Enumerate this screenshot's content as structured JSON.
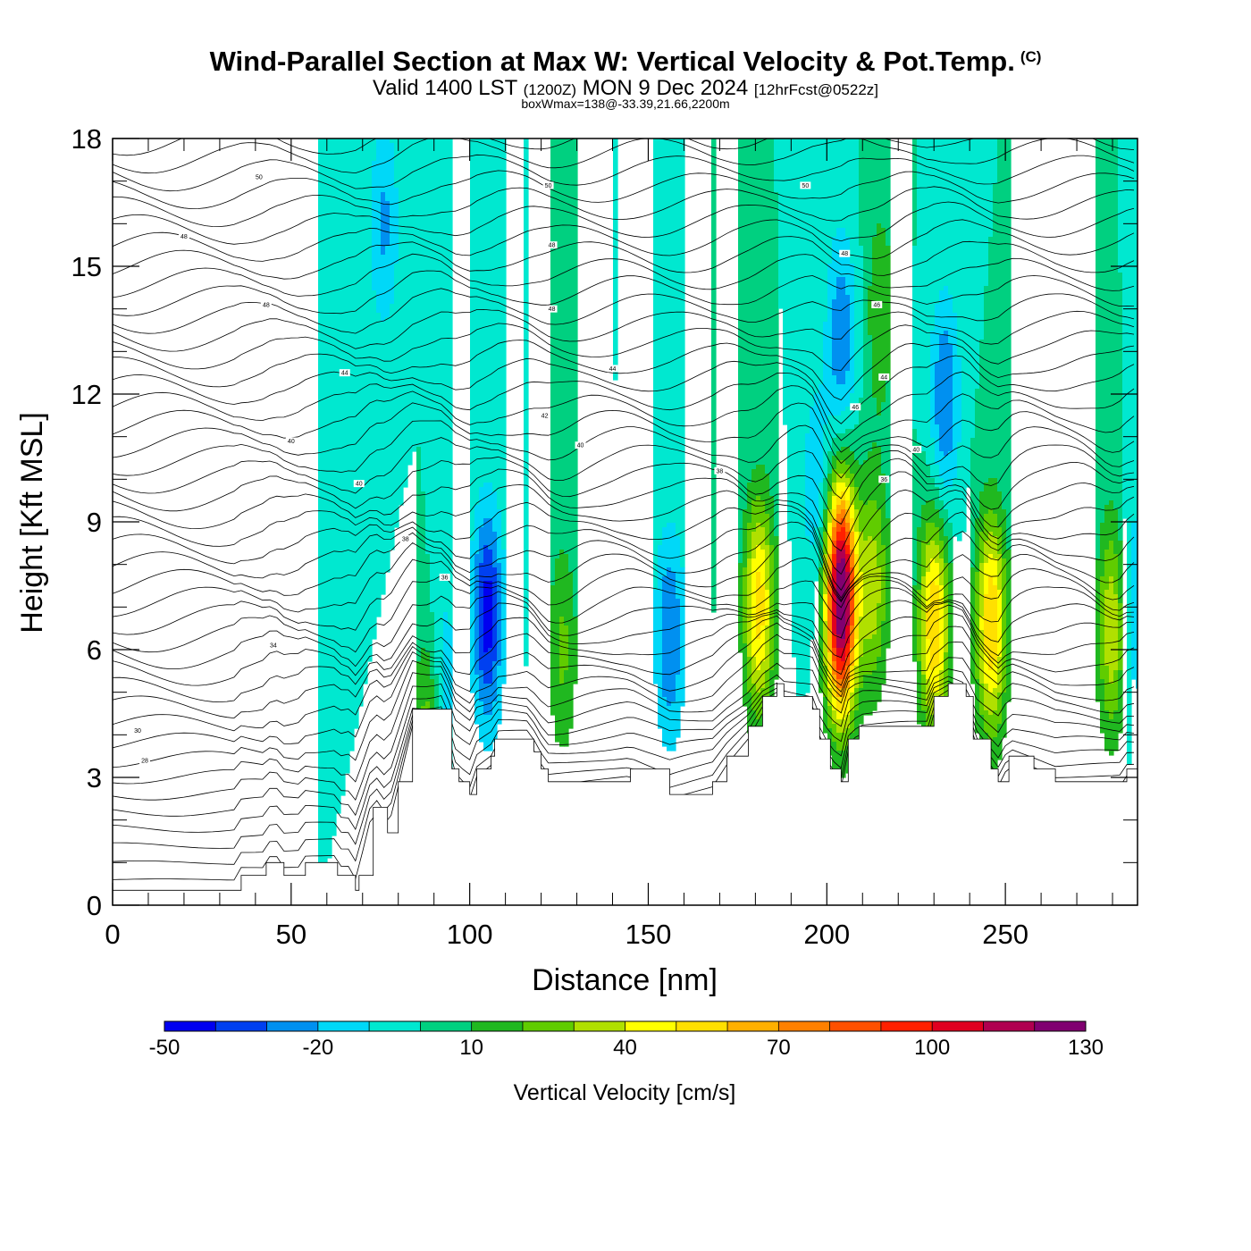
{
  "header": {
    "title": "Wind-Parallel Section at Max W: Vertical Velocity & Pot.Temp.",
    "copyright": "(C)",
    "valid_prefix": "Valid 1400 LST",
    "valid_utc": "(1200Z)",
    "valid_date": "MON 9 Dec 2024",
    "forecast": "[12hrFcst@0522z]",
    "box_wmax": "boxWmax=138@-33.39,21.66,2200m"
  },
  "chart_data": {
    "type": "heatmap",
    "xlabel": "Distance [nm]",
    "ylabel": "Height [Kft MSL]",
    "xlim": [
      0,
      287
    ],
    "ylim": [
      0,
      18
    ],
    "x_ticks": [
      "0",
      "50",
      "100",
      "150",
      "200",
      "250"
    ],
    "y_ticks": [
      "0",
      "3",
      "6",
      "9",
      "12",
      "15",
      "18"
    ],
    "colorbar": {
      "label": "Vertical Velocity [cm/s]",
      "levels": [
        -50,
        -40,
        -30,
        -20,
        -10,
        0,
        10,
        20,
        30,
        40,
        50,
        60,
        70,
        80,
        90,
        100,
        110,
        120,
        130,
        140,
        150
      ],
      "colors": [
        "#0000f0",
        "#0040f0",
        "#0090f0",
        "#00d8f8",
        "#00e8d0",
        "#00d080",
        "#20b820",
        "#60cc00",
        "#b0e000",
        "#ffff00",
        "#ffe000",
        "#ffb000",
        "#ff8000",
        "#ff5000",
        "#ff2000",
        "#e00020",
        "#b00050",
        "#800070"
      ],
      "tick_labels": [
        "-50",
        "-20",
        "10",
        "40",
        "70",
        "100",
        "130"
      ]
    },
    "background_value": 0,
    "terrain_kft": [
      [
        0,
        0.35
      ],
      [
        35,
        0.35
      ],
      [
        36,
        0.7
      ],
      [
        42,
        0.7
      ],
      [
        43,
        1.0
      ],
      [
        47,
        1.0
      ],
      [
        48,
        0.7
      ],
      [
        53,
        0.7
      ],
      [
        54,
        1.0
      ],
      [
        62,
        1.0
      ],
      [
        63,
        0.7
      ],
      [
        67,
        0.7
      ],
      [
        68,
        0.35
      ],
      [
        69,
        0.7
      ],
      [
        73,
        2.3
      ],
      [
        77,
        1.7
      ],
      [
        80,
        2.9
      ],
      [
        84,
        4.6
      ],
      [
        93,
        4.6
      ],
      [
        95,
        3.2
      ],
      [
        97,
        2.9
      ],
      [
        100,
        2.6
      ],
      [
        102,
        3.2
      ],
      [
        106,
        3.5
      ],
      [
        107,
        3.9
      ],
      [
        116,
        3.9
      ],
      [
        118,
        3.6
      ],
      [
        120,
        3.2
      ],
      [
        122,
        2.9
      ],
      [
        145,
        3.2
      ],
      [
        156,
        2.6
      ],
      [
        168,
        2.9
      ],
      [
        172,
        3.5
      ],
      [
        178,
        4.2
      ],
      [
        182,
        4.9
      ],
      [
        186,
        5.2
      ],
      [
        188,
        4.9
      ],
      [
        196,
        4.6
      ],
      [
        198,
        3.9
      ],
      [
        201,
        3.2
      ],
      [
        204,
        2.9
      ],
      [
        206,
        3.9
      ],
      [
        209,
        4.2
      ],
      [
        228,
        4.2
      ],
      [
        230,
        4.9
      ],
      [
        234,
        5.2
      ],
      [
        239,
        4.9
      ],
      [
        241,
        3.9
      ],
      [
        246,
        3.2
      ],
      [
        248,
        2.9
      ],
      [
        251,
        3.5
      ],
      [
        258,
        3.2
      ],
      [
        264,
        2.9
      ],
      [
        283,
        2.9
      ],
      [
        284,
        3.2
      ],
      [
        287,
        3.2
      ]
    ],
    "updraft_cores": [
      {
        "x": 204,
        "z": 7.2,
        "peak": 138
      },
      {
        "x": 181,
        "z": 7.0,
        "peak": 55
      },
      {
        "x": 230,
        "z": 6.6,
        "peak": 60
      },
      {
        "x": 246,
        "z": 6.6,
        "peak": 60
      },
      {
        "x": 213,
        "z": 7.5,
        "peak": 35
      },
      {
        "x": 126,
        "z": 6.0,
        "peak": 22
      },
      {
        "x": 89,
        "z": 4.0,
        "peak": 35
      },
      {
        "x": 215,
        "z": 14.0,
        "peak": 18
      },
      {
        "x": 280,
        "z": 6.5,
        "peak": 40
      }
    ],
    "downdraft_cores": [
      {
        "x": 105,
        "z": 6.8,
        "peak": -45
      },
      {
        "x": 156,
        "z": 6.3,
        "peak": -30
      },
      {
        "x": 233,
        "z": 11.8,
        "peak": -30
      },
      {
        "x": 204,
        "z": 13.3,
        "peak": -28
      },
      {
        "x": 92,
        "z": 5.0,
        "peak": -25
      },
      {
        "x": 76,
        "z": 16.0,
        "peak": -22
      },
      {
        "x": 197,
        "z": 9.8,
        "peak": -18
      },
      {
        "x": 286,
        "z": 7.0,
        "peak": -22
      }
    ],
    "theta_contour_labels": [
      {
        "x": 41,
        "z": 17.1,
        "text": "50"
      },
      {
        "x": 122,
        "z": 16.9,
        "text": "50"
      },
      {
        "x": 194,
        "z": 16.9,
        "text": "50"
      },
      {
        "x": 20,
        "z": 15.7,
        "text": "48"
      },
      {
        "x": 123,
        "z": 15.5,
        "text": "48"
      },
      {
        "x": 205,
        "z": 15.3,
        "text": "48"
      },
      {
        "x": 43,
        "z": 14.1,
        "text": "48"
      },
      {
        "x": 123,
        "z": 14.0,
        "text": "48"
      },
      {
        "x": 214,
        "z": 14.1,
        "text": "46"
      },
      {
        "x": 65,
        "z": 12.5,
        "text": "44"
      },
      {
        "x": 140,
        "z": 12.6,
        "text": "44"
      },
      {
        "x": 216,
        "z": 12.4,
        "text": "44"
      },
      {
        "x": 121,
        "z": 11.5,
        "text": "42"
      },
      {
        "x": 208,
        "z": 11.7,
        "text": "46"
      },
      {
        "x": 50,
        "z": 10.9,
        "text": "40"
      },
      {
        "x": 131,
        "z": 10.8,
        "text": "40"
      },
      {
        "x": 225,
        "z": 10.7,
        "text": "40"
      },
      {
        "x": 69,
        "z": 9.9,
        "text": "40"
      },
      {
        "x": 170,
        "z": 10.2,
        "text": "38"
      },
      {
        "x": 216,
        "z": 10.0,
        "text": "36"
      },
      {
        "x": 82,
        "z": 8.6,
        "text": "38"
      },
      {
        "x": 93,
        "z": 7.7,
        "text": "36"
      },
      {
        "x": 45,
        "z": 6.1,
        "text": "34"
      },
      {
        "x": 7,
        "z": 4.1,
        "text": "30"
      },
      {
        "x": 9,
        "z": 3.4,
        "text": "28"
      }
    ]
  }
}
